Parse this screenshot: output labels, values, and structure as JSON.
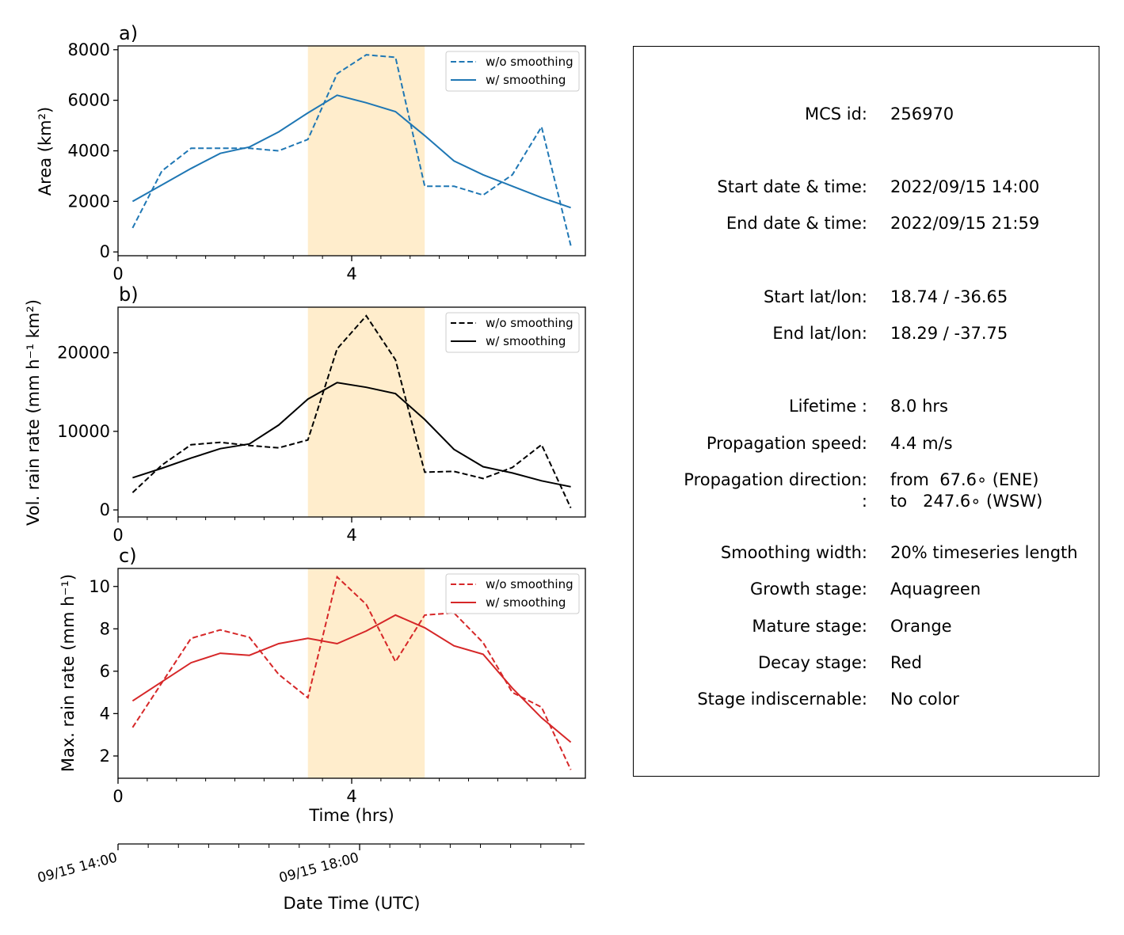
{
  "chart_data": [
    {
      "type": "line",
      "panel_label": "a)",
      "ylabel": "Area  (km$^2$)",
      "ylabel_display": "Area  (km²)",
      "ylim": [
        -150,
        8150
      ],
      "xlim": [
        0,
        8
      ],
      "yticks": [
        0,
        2000,
        4000,
        6000,
        8000
      ],
      "xticks": [
        0,
        4
      ],
      "x": [
        0.25,
        0.75,
        1.25,
        1.75,
        2.25,
        2.75,
        3.25,
        3.75,
        4.25,
        4.75,
        5.25,
        5.75,
        6.25,
        6.75,
        7.25,
        7.75
      ],
      "series": [
        {
          "name": "w/o smoothing",
          "style": "dashed",
          "color": "#1f77b4",
          "values": [
            950,
            3200,
            4100,
            4100,
            4100,
            4000,
            4450,
            7050,
            7800,
            7700,
            2600,
            2600,
            2250,
            3050,
            4950,
            250
          ]
        },
        {
          "name": "w/ smoothing",
          "style": "solid",
          "color": "#1f77b4",
          "values": [
            2000,
            2650,
            3300,
            3900,
            4150,
            4750,
            5500,
            6200,
            5900,
            5550,
            4600,
            3600,
            3050,
            2600,
            2150,
            1750
          ]
        }
      ],
      "legend": "top-right"
    },
    {
      "type": "line",
      "panel_label": "b)",
      "ylabel": "Vol. rain rate (mm h$^{-1}$ km$^2$)",
      "ylabel_display": "Vol. rain rate (mm h⁻¹ km²)",
      "ylim": [
        -900,
        25800
      ],
      "xlim": [
        0,
        8
      ],
      "yticks": [
        0,
        10000,
        20000
      ],
      "xticks": [
        0,
        4
      ],
      "x": [
        0.25,
        0.75,
        1.25,
        1.75,
        2.25,
        2.75,
        3.25,
        3.75,
        4.25,
        4.75,
        5.25,
        5.75,
        6.25,
        6.75,
        7.25,
        7.75
      ],
      "series": [
        {
          "name": "w/o smoothing",
          "style": "dashed",
          "color": "#000000",
          "values": [
            2200,
            5700,
            8300,
            8600,
            8200,
            7900,
            8900,
            20500,
            24700,
            19100,
            4800,
            4900,
            4000,
            5400,
            8300,
            250
          ]
        },
        {
          "name": "w/ smoothing",
          "style": "solid",
          "color": "#000000",
          "values": [
            4100,
            5300,
            6600,
            7800,
            8400,
            10800,
            14100,
            16200,
            15600,
            14800,
            11500,
            7700,
            5500,
            4700,
            3700,
            2950
          ]
        }
      ],
      "legend": "top-right"
    },
    {
      "type": "line",
      "panel_label": "c)",
      "ylabel": "Max. rain rate  (mm h$^{-1}$)",
      "ylabel_display": "Max. rain rate  (mm h⁻¹)",
      "ylim": [
        0.95,
        10.85
      ],
      "xlim": [
        0,
        8
      ],
      "yticks": [
        2,
        4,
        6,
        8,
        10
      ],
      "xticks": [
        0,
        4
      ],
      "xlabel": "Time (hrs)",
      "x": [
        0.25,
        0.75,
        1.25,
        1.75,
        2.25,
        2.75,
        3.25,
        3.75,
        4.25,
        4.75,
        5.25,
        5.75,
        6.25,
        6.75,
        7.25,
        7.75
      ],
      "series": [
        {
          "name": "w/o smoothing",
          "style": "dashed",
          "color": "#d62728",
          "values": [
            3.35,
            5.45,
            7.55,
            7.95,
            7.6,
            5.85,
            4.75,
            10.45,
            9.15,
            6.45,
            8.65,
            8.75,
            7.35,
            5.0,
            4.3,
            1.35
          ]
        },
        {
          "name": "w/ smoothing",
          "style": "solid",
          "color": "#d62728",
          "values": [
            4.6,
            5.5,
            6.4,
            6.85,
            6.75,
            7.3,
            7.55,
            7.3,
            7.9,
            8.65,
            8.05,
            7.2,
            6.8,
            5.2,
            3.8,
            2.65
          ]
        }
      ],
      "legend": "top-right"
    }
  ],
  "highlight": {
    "x_range": [
      3.25,
      5.25
    ],
    "color": "#ffedcc"
  },
  "date_axis": {
    "label": "Date Time (UTC)",
    "ticklabels": [
      "09/15 14:00",
      "09/15 18:00"
    ],
    "tick_hours": [
      0,
      4
    ]
  },
  "panel_labels": {
    "a": "a)",
    "b": "b)",
    "c": "c)"
  },
  "axis_labels": {
    "a_y": "Area  (km²)",
    "b_y": "Vol. rain rate (mm h⁻¹ km²)",
    "c_y": "Max. rain rate  (mm h⁻¹)",
    "c_x": "Time (hrs)"
  },
  "legend": {
    "wo": "w/o smoothing",
    "w": "w/ smoothing"
  },
  "info": {
    "mcs_id": {
      "label": "MCS id:",
      "value": "256970"
    },
    "start_time": {
      "label": "Start date & time:",
      "value": "2022/09/15 14:00"
    },
    "end_time": {
      "label": "End date & time:",
      "value": "2022/09/15 21:59"
    },
    "start_latlon": {
      "label": "Start lat/lon:",
      "value": "18.74 / -36.65"
    },
    "end_latlon": {
      "label": "End lat/lon:",
      "value": "18.29 / -37.75"
    },
    "lifetime": {
      "label": "Lifetime :",
      "value": "8.0 hrs"
    },
    "speed": {
      "label": "Propagation speed:",
      "value": "4.4 m/s"
    },
    "direction": {
      "label": "Propagation direction:",
      "value": "from  67.6∘ (ENE)"
    },
    "direction2": {
      "label": ":",
      "value": "to   247.6∘ (WSW)"
    },
    "smoothing": {
      "label": "Smoothing width:",
      "value": "20% timeseries length"
    },
    "growth": {
      "label": "Growth stage:",
      "value": "Aquagreen"
    },
    "mature": {
      "label": "Mature stage:",
      "value": "Orange"
    },
    "decay": {
      "label": "Decay stage:",
      "value": "Red"
    },
    "indiscernable": {
      "label": "Stage indiscernable:",
      "value": "No color"
    }
  }
}
